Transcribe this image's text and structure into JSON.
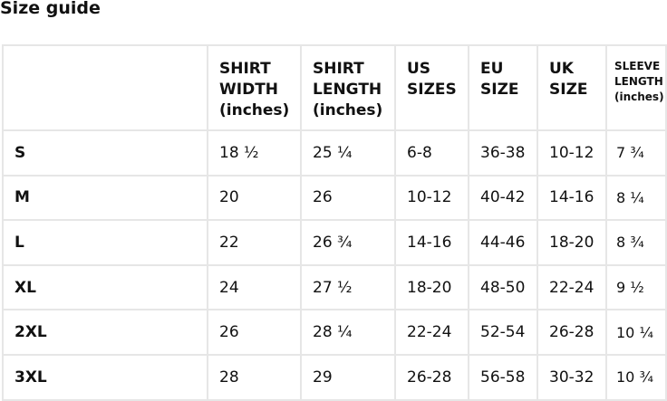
{
  "title": "Size guide",
  "columns": [
    "",
    "SHIRT WIDTH (inches)",
    "SHIRT LENGTH (inches)",
    "US SIZES",
    "EU SIZE",
    "UK SIZE",
    "SLEEVE LENGTH (inches)"
  ],
  "rows": [
    [
      "S",
      "18 ½",
      "25 ¼",
      "6-8",
      "36-38",
      "10-12",
      "7 ¾"
    ],
    [
      "M",
      "20",
      "26",
      "10-12",
      "40-42",
      "14-16",
      "8 ¼"
    ],
    [
      "L",
      "22",
      "26 ¾",
      "14-16",
      "44-46",
      "18-20",
      "8 ¾"
    ],
    [
      "XL",
      "24",
      "27 ½",
      "18-20",
      "48-50",
      "22-24",
      "9 ½"
    ],
    [
      "2XL",
      "26",
      "28 ¼",
      "22-24",
      "52-54",
      "26-28",
      "10 ¼"
    ],
    [
      "3XL",
      "28",
      "29",
      "26-28",
      "56-58",
      "30-32",
      "10 ¾"
    ]
  ]
}
